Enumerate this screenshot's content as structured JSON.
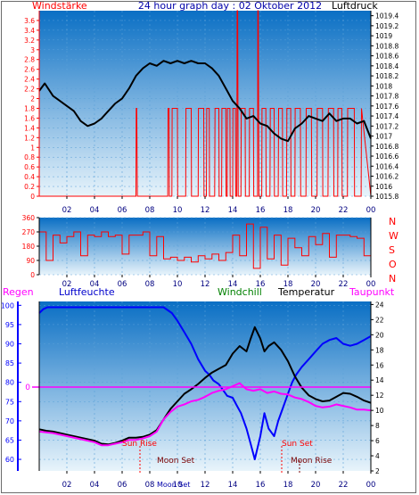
{
  "colors": {
    "plot_top": "#0a6fc4",
    "plot_bottom": "#e8f4fb",
    "wind": "#ff0000",
    "pressure": "#000000",
    "direction": "#ff0000",
    "humidity": "#0000ff",
    "temperature": "#000000",
    "windchill": "#008000",
    "dewpoint": "#ff00ff",
    "rain": "#ff00ff",
    "axis_left_red": "#ff0000",
    "axis_right": "#000000",
    "humidity_axis": "#0000ff",
    "astro_label": "#ff0000",
    "astro_label_dark": "#7a0000"
  },
  "chart_data": [
    {
      "type": "line",
      "title": "24 hour graph day : 02 Oktober 2012",
      "y_left_label": "Windstärke",
      "y_right_label": "Luftdruck",
      "x_ticks": [
        "02",
        "04",
        "06",
        "08",
        "10",
        "12",
        "14",
        "16",
        "18",
        "20",
        "22",
        "00"
      ],
      "x_range": [
        0,
        24
      ],
      "y_left_ticks": [
        "0",
        "0.2",
        "0.4",
        "0.6",
        "0.8",
        "1",
        "1.2",
        "1.4",
        "1.6",
        "1.8",
        "2",
        "2.2",
        "2.4",
        "2.6",
        "2.8",
        "3",
        "3.2",
        "3.4",
        "3.6"
      ],
      "y_left_range": [
        0,
        3.8
      ],
      "y_right_ticks": [
        "1015.8",
        "1016",
        "1016.2",
        "1016.4",
        "1016.6",
        "1016.8",
        "1017",
        "1017.2",
        "1017.4",
        "1017.6",
        "1017.8",
        "1018",
        "1018.2",
        "1018.4",
        "1018.6",
        "1018.8",
        "1019",
        "1019.2",
        "1019.4"
      ],
      "y_right_range": [
        1015.8,
        1019.5
      ],
      "series": [
        {
          "axis": "right",
          "x": [
            0,
            0.4,
            1,
            1.5,
            2,
            2.5,
            3,
            3.5,
            4,
            4.5,
            5,
            5.5,
            6,
            6.5,
            7,
            7.5,
            8,
            8.5,
            9,
            9.5,
            10,
            10.5,
            11,
            11.5,
            12,
            12.5,
            13,
            13.5,
            14,
            14.5,
            15,
            15.5,
            16,
            16.5,
            17,
            17.5,
            18,
            18.5,
            19,
            19.5,
            20,
            20.5,
            21,
            21.5,
            22,
            22.5,
            23,
            23.5,
            24
          ],
          "values": [
            1017.9,
            1018.05,
            1017.8,
            1017.7,
            1017.6,
            1017.5,
            1017.3,
            1017.2,
            1017.25,
            1017.35,
            1017.5,
            1017.65,
            1017.75,
            1017.95,
            1018.2,
            1018.35,
            1018.45,
            1018.4,
            1018.5,
            1018.45,
            1018.5,
            1018.45,
            1018.5,
            1018.45,
            1018.45,
            1018.35,
            1018.2,
            1017.95,
            1017.7,
            1017.55,
            1017.35,
            1017.4,
            1017.25,
            1017.2,
            1017.05,
            1016.95,
            1016.9,
            1017.15,
            1017.25,
            1017.4,
            1017.35,
            1017.3,
            1017.45,
            1017.3,
            1017.35,
            1017.35,
            1017.25,
            1017.3,
            1016.95
          ]
        },
        {
          "axis": "left",
          "x": [
            0,
            7,
            7.02,
            7.06,
            7.1,
            9.3,
            9.32,
            9.4,
            9.42,
            9.6,
            9.62,
            10,
            10.02,
            10.6,
            10.62,
            11,
            11.02,
            11.5,
            11.52,
            11.9,
            11.92,
            12.1,
            12.12,
            12.3,
            12.32,
            12.7,
            12.72,
            13,
            13.02,
            13.2,
            13.22,
            13.5,
            13.52,
            13.6,
            13.62,
            13.8,
            13.82,
            14,
            14.02,
            14.2,
            14.22,
            14.3,
            14.32,
            14.36,
            14.4,
            14.6,
            14.62,
            14.9,
            14.92,
            15.2,
            15.22,
            15.5,
            15.52,
            15.8,
            15.82,
            15.85,
            15.9,
            16.1,
            16.12,
            16.4,
            16.42,
            16.7,
            16.72,
            17,
            17.02,
            17.3,
            17.32,
            17.6,
            17.62,
            17.9,
            17.92,
            18.2,
            18.22,
            18.5,
            18.52,
            18.9,
            18.92,
            19.3,
            19.32,
            19.7,
            19.72,
            20.1,
            20.12,
            20.5,
            20.52,
            20.9,
            20.92,
            21.3,
            21.32,
            21.6,
            21.62,
            21.9,
            21.92,
            22.3,
            22.32,
            22.8,
            22.82,
            23.3,
            23.32,
            24
          ],
          "values": [
            0,
            0,
            1.8,
            1.8,
            0,
            0,
            1.8,
            1.8,
            0,
            0,
            1.8,
            1.8,
            0,
            0,
            1.8,
            1.8,
            0,
            0,
            1.8,
            1.8,
            0,
            0,
            1.8,
            1.8,
            0,
            0,
            1.8,
            1.8,
            0,
            0,
            1.8,
            1.8,
            0,
            0,
            1.8,
            1.8,
            0,
            0,
            1.8,
            1.8,
            0,
            0,
            3.8,
            3.8,
            0,
            0,
            1.8,
            1.8,
            0,
            0,
            1.8,
            1.8,
            0,
            0,
            3.8,
            3.8,
            0,
            0,
            1.8,
            1.8,
            0,
            0,
            1.8,
            1.8,
            0,
            0,
            1.8,
            1.8,
            0,
            0,
            1.8,
            1.8,
            0,
            0,
            1.8,
            1.8,
            0,
            0,
            1.8,
            1.8,
            0,
            0,
            1.8,
            1.8,
            0,
            0,
            1.8,
            1.8,
            0,
            0,
            1.8,
            1.8,
            0,
            0,
            1.8,
            1.8,
            0,
            0,
            1.8,
            0
          ]
        }
      ]
    },
    {
      "type": "line",
      "x_ticks": [
        "02",
        "04",
        "06",
        "08",
        "10",
        "12",
        "14",
        "16",
        "18",
        "20",
        "22",
        "00"
      ],
      "x_range": [
        0,
        24
      ],
      "y_left_ticks": [
        "0",
        "90",
        "180",
        "270",
        "360"
      ],
      "y_range": [
        0,
        360
      ],
      "y_right_labels": [
        "N",
        "W",
        "S",
        "O",
        "N"
      ],
      "series": [
        {
          "x": [
            0,
            0.5,
            1,
            1.5,
            2,
            2.5,
            3,
            3.5,
            4,
            4.5,
            5,
            5.5,
            6,
            6.5,
            7,
            7.5,
            8,
            8.5,
            9,
            9.5,
            10,
            10.5,
            11,
            11.5,
            12,
            12.5,
            13,
            13.5,
            14,
            14.5,
            15,
            15.5,
            16,
            16.5,
            17,
            17.5,
            18,
            18.5,
            19,
            19.5,
            20,
            20.5,
            21,
            21.5,
            22,
            22.5,
            23,
            23.5,
            24
          ],
          "values": [
            270,
            90,
            250,
            200,
            240,
            270,
            120,
            250,
            240,
            270,
            240,
            250,
            130,
            250,
            250,
            270,
            120,
            240,
            100,
            110,
            90,
            110,
            80,
            120,
            100,
            130,
            90,
            140,
            250,
            120,
            320,
            40,
            300,
            100,
            250,
            60,
            230,
            170,
            120,
            240,
            190,
            260,
            110,
            250,
            250,
            240,
            230,
            120,
            240
          ]
        }
      ]
    },
    {
      "type": "line",
      "header_labels": [
        "Regen",
        "Luftfeuchte",
        "Windchill",
        "Temperatur",
        "Taupunkt"
      ],
      "x_ticks": [
        "02",
        "04",
        "06",
        "08",
        "10",
        "12",
        "14",
        "16",
        "18",
        "20",
        "22",
        "00"
      ],
      "x_range": [
        0,
        24
      ],
      "y_left_ticks": [
        "60",
        "65",
        "70",
        "75",
        "80",
        "85",
        "90",
        "95",
        "100"
      ],
      "y_left_range": [
        57,
        101
      ],
      "y_right_ticks": [
        "2",
        "4",
        "6",
        "8",
        "10",
        "12",
        "14",
        "16",
        "18",
        "20",
        "22",
        "24"
      ],
      "y_right_range": [
        2,
        24.4
      ],
      "rain_axis_tick": "0",
      "annotations": [
        "Sun Rise",
        "Moon Set",
        "Sun Set",
        "Moon Rise",
        "Moon Set"
      ],
      "series": [
        {
          "name": "Luftfeuchte",
          "axis": "left",
          "x": [
            0,
            0.3,
            0.6,
            1,
            2,
            4,
            6,
            8,
            9,
            9.6,
            10,
            10.5,
            11,
            11.5,
            12,
            12.3,
            12.6,
            13,
            13.3,
            13.6,
            14,
            14.3,
            14.6,
            15,
            15.3,
            15.6,
            16,
            16.3,
            16.6,
            17,
            17.3,
            17.6,
            18,
            18.3,
            18.6,
            19,
            19.5,
            20,
            20.5,
            21,
            21.5,
            22,
            22.5,
            23,
            23.5,
            24
          ],
          "values": [
            98,
            99,
            99.5,
            99.5,
            99.5,
            99.5,
            99.5,
            99.5,
            99.5,
            98,
            96,
            93,
            90,
            86,
            83,
            82,
            80.5,
            79.5,
            78,
            76.5,
            76,
            74,
            72,
            68,
            64,
            60,
            66,
            72,
            68,
            66,
            70,
            73,
            77,
            80,
            82,
            84,
            86,
            88,
            90,
            91,
            91.5,
            90,
            89.5,
            90,
            91,
            92
          ]
        },
        {
          "name": "Temperatur",
          "axis": "right",
          "x": [
            0,
            0.5,
            1,
            2,
            3,
            4,
            4.5,
            5,
            5.5,
            6,
            6.5,
            7,
            7.5,
            8,
            8.5,
            9,
            9.5,
            10,
            10.5,
            11,
            11.5,
            12,
            12.5,
            13,
            13.5,
            14,
            14.5,
            15,
            15.3,
            15.6,
            16,
            16.3,
            16.6,
            17,
            17.5,
            18,
            18.5,
            19,
            19.5,
            20,
            20.5,
            21,
            21.5,
            22,
            22.5,
            23,
            23.5,
            24
          ],
          "values": [
            7.5,
            7.3,
            7.2,
            6.8,
            6.4,
            6.0,
            5.6,
            5.5,
            5.7,
            6.0,
            6.4,
            6.4,
            6.5,
            6.8,
            7.4,
            8.8,
            10.2,
            11.2,
            12.2,
            12.8,
            13.5,
            14.3,
            15,
            15.5,
            16,
            17.5,
            18.5,
            17.8,
            19.5,
            21,
            19.5,
            17.8,
            18.5,
            19,
            18,
            16.5,
            14.5,
            13,
            12,
            11.5,
            11.2,
            11.3,
            11.8,
            12.3,
            12.2,
            11.8,
            11.3,
            11
          ]
        },
        {
          "name": "Taupunkt",
          "axis": "right",
          "x": [
            0,
            1,
            2,
            3,
            4,
            4.5,
            5,
            5.5,
            6,
            6.5,
            7,
            7.5,
            8,
            8.5,
            9,
            9.5,
            10,
            10.5,
            11,
            11.5,
            12,
            12.5,
            13,
            13.5,
            14,
            14.5,
            15,
            15.5,
            16,
            16.5,
            17,
            17.5,
            18,
            18.5,
            19,
            19.5,
            20,
            20.5,
            21,
            21.5,
            22,
            22.5,
            23,
            23.5,
            24
          ],
          "values": [
            7.2,
            7.0,
            6.6,
            6.2,
            5.8,
            5.4,
            5.4,
            5.6,
            5.8,
            6.1,
            6.1,
            6.3,
            6.6,
            7.2,
            8.8,
            9.8,
            10.5,
            10.8,
            11.2,
            11.4,
            11.8,
            12.3,
            12.6,
            12.8,
            13.2,
            13.6,
            12.8,
            12.6,
            12.8,
            12.3,
            12.5,
            12.2,
            12.1,
            11.7,
            11.5,
            11.1,
            10.6,
            10.4,
            10.5,
            10.8,
            10.6,
            10.4,
            10.1,
            10.1,
            10.0
          ]
        },
        {
          "name": "Regen",
          "axis": "rain",
          "x": [
            0,
            24
          ],
          "values": [
            0,
            0
          ]
        }
      ]
    }
  ]
}
